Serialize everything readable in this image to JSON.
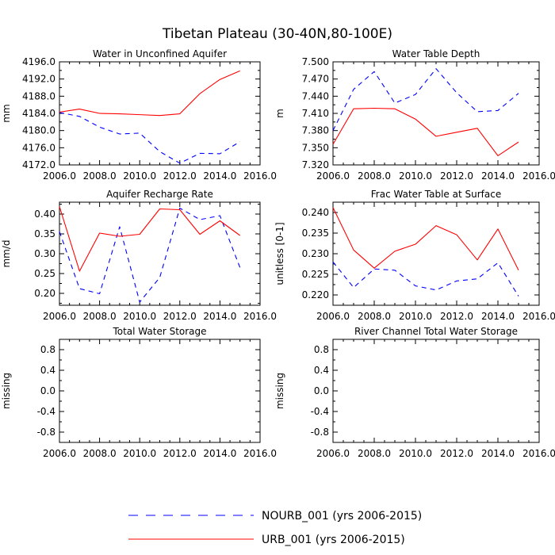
{
  "figure": {
    "title": "Tibetan Plateau (30-40N,80-100E)"
  },
  "colors": {
    "NOURB": "#0000ff",
    "URB": "#ff0000"
  },
  "legend": [
    {
      "key": "NOURB",
      "label": "NOURB_001 (yrs 2006-2015)",
      "dash": "dashed"
    },
    {
      "key": "URB",
      "label": "URB_001 (yrs 2006-2015)",
      "dash": "solid"
    }
  ],
  "chart_data": [
    {
      "type": "line",
      "title": "Water in Unconfined Aquifer",
      "ylabel": "mm",
      "xlim": [
        2006,
        2016
      ],
      "ylim": [
        4172,
        4196
      ],
      "xticks": [
        2006,
        2008,
        2010,
        2012,
        2014,
        2016
      ],
      "xtick_labels": [
        "2006.0",
        "2008.0",
        "2010.0",
        "2012.0",
        "2014.0",
        "2016.0"
      ],
      "yticks": [
        4172,
        4176,
        4180,
        4184,
        4188,
        4192,
        4196
      ],
      "ytick_labels": [
        "4172.0",
        "4176.0",
        "4180.0",
        "4184.0",
        "4188.0",
        "4192.0",
        "4196.0"
      ],
      "x": [
        2006,
        2007,
        2008,
        2009,
        2010,
        2011,
        2012,
        2013,
        2014,
        2015
      ],
      "series": [
        {
          "key": "NOURB",
          "values": [
            4184.2,
            4183.3,
            4180.8,
            4179.2,
            4179.4,
            4175.1,
            4172.4,
            4174.7,
            4174.6,
            4177.4
          ]
        },
        {
          "key": "URB",
          "values": [
            4184.3,
            4185.0,
            4184.0,
            4183.9,
            4183.7,
            4183.5,
            4183.9,
            4188.6,
            4191.9,
            4193.9
          ]
        }
      ]
    },
    {
      "type": "line",
      "title": "Water Table Depth",
      "ylabel": "m",
      "xlim": [
        2006,
        2016
      ],
      "ylim": [
        7.32,
        7.5
      ],
      "xticks": [
        2006,
        2008,
        2010,
        2012,
        2014,
        2016
      ],
      "xtick_labels": [
        "2006.0",
        "2008.0",
        "2010.0",
        "2012.0",
        "2014.0",
        "2016.0"
      ],
      "yticks": [
        7.32,
        7.35,
        7.38,
        7.41,
        7.44,
        7.47,
        7.5
      ],
      "ytick_labels": [
        "7.320",
        "7.350",
        "7.380",
        "7.410",
        "7.440",
        "7.470",
        "7.500"
      ],
      "x": [
        2006,
        2007,
        2008,
        2009,
        2010,
        2011,
        2012,
        2013,
        2014,
        2015
      ],
      "series": [
        {
          "key": "NOURB",
          "values": [
            7.38,
            7.452,
            7.483,
            7.428,
            7.443,
            7.488,
            7.446,
            7.413,
            7.415,
            7.445
          ]
        },
        {
          "key": "URB",
          "values": [
            7.356,
            7.418,
            7.419,
            7.418,
            7.4,
            7.37,
            7.377,
            7.384,
            7.336,
            7.36
          ]
        }
      ]
    },
    {
      "type": "line",
      "title": "Aquifer Recharge Rate",
      "ylabel": "mm/d",
      "xlim": [
        2006,
        2016
      ],
      "ylim": [
        0.17,
        0.43
      ],
      "xticks": [
        2006,
        2008,
        2010,
        2012,
        2014,
        2016
      ],
      "xtick_labels": [
        "2006.0",
        "2008.0",
        "2010.0",
        "2012.0",
        "2014.0",
        "2016.0"
      ],
      "yticks": [
        0.2,
        0.25,
        0.3,
        0.35,
        0.4
      ],
      "ytick_labels": [
        "0.20",
        "0.25",
        "0.30",
        "0.35",
        "0.40"
      ],
      "x": [
        2006,
        2007,
        2008,
        2009,
        2010,
        2011,
        2012,
        2013,
        2014,
        2015
      ],
      "series": [
        {
          "key": "NOURB",
          "values": [
            0.356,
            0.212,
            0.199,
            0.368,
            0.178,
            0.24,
            0.415,
            0.386,
            0.396,
            0.265
          ]
        },
        {
          "key": "URB",
          "values": [
            0.419,
            0.256,
            0.352,
            0.344,
            0.349,
            0.413,
            0.411,
            0.349,
            0.383,
            0.346
          ]
        }
      ]
    },
    {
      "type": "line",
      "title": "Frac Water Table at Surface",
      "ylabel": "unitless [0-1]",
      "xlim": [
        2006,
        2016
      ],
      "ylim": [
        0.2175,
        0.2425
      ],
      "xticks": [
        2006,
        2008,
        2010,
        2012,
        2014,
        2016
      ],
      "xtick_labels": [
        "2006.0",
        "2008.0",
        "2010.0",
        "2012.0",
        "2014.0",
        "2016.0"
      ],
      "yticks": [
        0.22,
        0.225,
        0.23,
        0.235,
        0.24
      ],
      "ytick_labels": [
        "0.220",
        "0.225",
        "0.230",
        "0.235",
        "0.240"
      ],
      "x": [
        2006,
        2007,
        2008,
        2009,
        2010,
        2011,
        2012,
        2013,
        2014,
        2015
      ],
      "series": [
        {
          "key": "NOURB",
          "values": [
            0.228,
            0.2218,
            0.2263,
            0.226,
            0.2222,
            0.2212,
            0.2234,
            0.2239,
            0.2278,
            0.2197
          ]
        },
        {
          "key": "URB",
          "values": [
            0.2412,
            0.2309,
            0.2265,
            0.2306,
            0.2323,
            0.2368,
            0.2346,
            0.2285,
            0.236,
            0.226
          ]
        }
      ]
    },
    {
      "type": "line",
      "title": "Total Water Storage",
      "ylabel": "missing",
      "xlim": [
        2006,
        2016
      ],
      "ylim": [
        -1,
        1
      ],
      "xticks": [
        2006,
        2008,
        2010,
        2012,
        2014,
        2016
      ],
      "xtick_labels": [
        "2006.0",
        "2008.0",
        "2010.0",
        "2012.0",
        "2014.0",
        "2016.0"
      ],
      "yticks": [
        -0.8,
        -0.4,
        0.0,
        0.4,
        0.8
      ],
      "ytick_labels": [
        "-0.8",
        "-0.4",
        "0.0",
        "0.4",
        "0.8"
      ],
      "x": [],
      "series": []
    },
    {
      "type": "line",
      "title": "River Channel Total Water Storage",
      "ylabel": "missing",
      "xlim": [
        2006,
        2016
      ],
      "ylim": [
        -1,
        1
      ],
      "xticks": [
        2006,
        2008,
        2010,
        2012,
        2014,
        2016
      ],
      "xtick_labels": [
        "2006.0",
        "2008.0",
        "2010.0",
        "2012.0",
        "2014.0",
        "2016.0"
      ],
      "yticks": [
        -0.8,
        -0.4,
        0.0,
        0.4,
        0.8
      ],
      "ytick_labels": [
        "-0.8",
        "-0.4",
        "0.0",
        "0.4",
        "0.8"
      ],
      "x": [],
      "series": []
    }
  ]
}
